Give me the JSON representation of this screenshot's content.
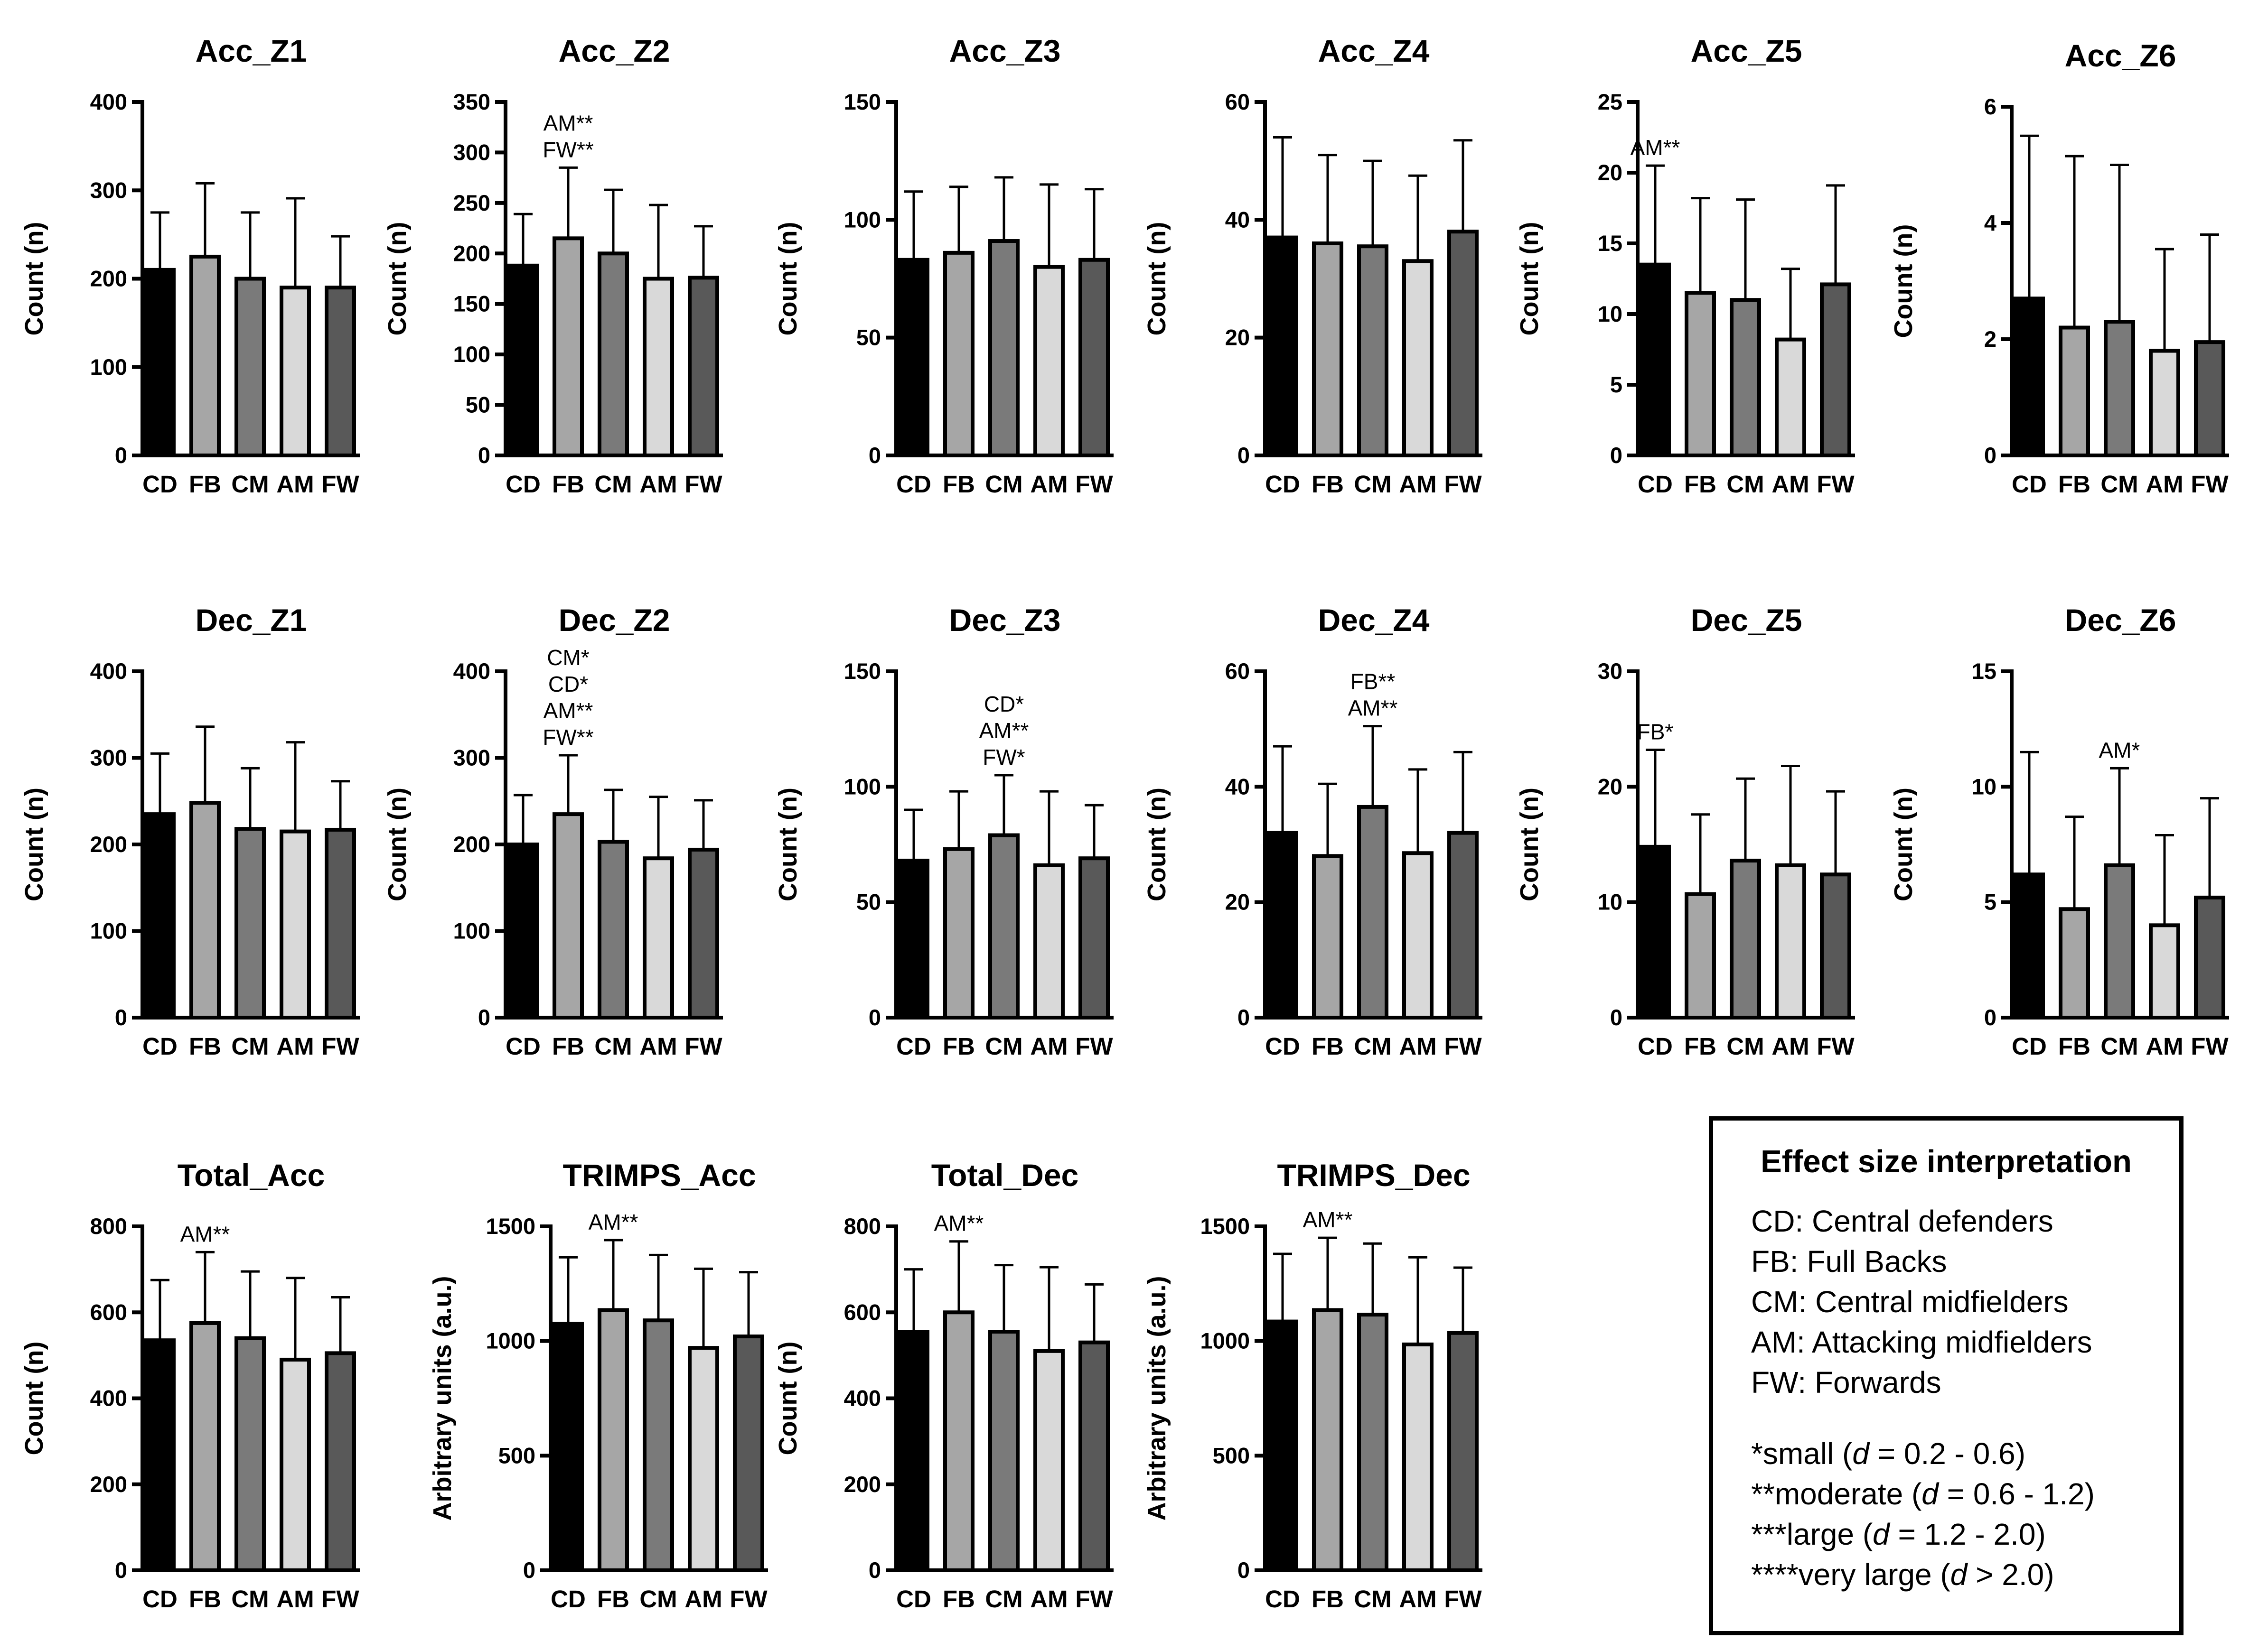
{
  "categories": [
    "CD",
    "FB",
    "CM",
    "AM",
    "FW"
  ],
  "bar_colors": [
    "#000000",
    "#a6a6a6",
    "#7a7a7a",
    "#d9d9d9",
    "#595959"
  ],
  "chart_data": [
    {
      "type": "bar",
      "title": "Acc_Z1",
      "ylabel": "Count (n)",
      "ylim": [
        0,
        400
      ],
      "yticks": [
        0,
        100,
        200,
        300,
        400
      ],
      "values": [
        210,
        225,
        200,
        190,
        190
      ],
      "errors": [
        65,
        83,
        75,
        101,
        58
      ],
      "annotation": []
    },
    {
      "type": "bar",
      "title": "Acc_Z2",
      "ylabel": "Count (n)",
      "ylim": [
        0,
        350
      ],
      "yticks": [
        0,
        50,
        100,
        150,
        200,
        250,
        300,
        350
      ],
      "values": [
        188,
        215,
        200,
        175,
        176
      ],
      "errors": [
        51,
        70,
        63,
        73,
        51
      ],
      "annotation": [
        "AM**",
        "FW**"
      ],
      "annotation_at": "FB"
    },
    {
      "type": "bar",
      "title": "Acc_Z3",
      "ylabel": "Count (n)",
      "ylim": [
        0,
        150
      ],
      "yticks": [
        0,
        50,
        100,
        150
      ],
      "values": [
        83,
        86,
        91,
        80,
        83
      ],
      "errors": [
        29,
        28,
        27,
        35,
        30
      ],
      "annotation": []
    },
    {
      "type": "bar",
      "title": "Acc_Z4",
      "ylabel": "Count (n)",
      "ylim": [
        0,
        60
      ],
      "yticks": [
        0,
        20,
        40,
        60
      ],
      "values": [
        37,
        36,
        35.5,
        33,
        38
      ],
      "errors": [
        17,
        15,
        14.5,
        14.5,
        15.5
      ],
      "annotation": []
    },
    {
      "type": "bar",
      "title": "Acc_Z5",
      "ylabel": "Count (n)",
      "ylim": [
        0,
        25
      ],
      "yticks": [
        0,
        5,
        10,
        15,
        20,
        25
      ],
      "values": [
        13.5,
        11.5,
        11,
        8.2,
        12.1
      ],
      "errors": [
        7,
        6.7,
        7.1,
        5,
        7
      ],
      "annotation": [
        "AM**"
      ],
      "annotation_at": "CD"
    },
    {
      "type": "bar",
      "title": "Acc_Z6",
      "ylabel": "Count (n)",
      "ylim": [
        0,
        6
      ],
      "yticks": [
        0,
        2,
        4,
        6
      ],
      "values": [
        2.7,
        2.2,
        2.3,
        1.8,
        1.95
      ],
      "errors": [
        2.8,
        2.95,
        2.7,
        1.75,
        1.85
      ],
      "annotation": []
    },
    {
      "type": "bar",
      "title": "Dec_Z1",
      "ylabel": "Count (n)",
      "ylim": [
        0,
        400
      ],
      "yticks": [
        0,
        100,
        200,
        300,
        400
      ],
      "values": [
        235,
        248,
        218,
        215,
        217
      ],
      "errors": [
        70,
        88,
        70,
        103,
        56
      ],
      "annotation": []
    },
    {
      "type": "bar",
      "title": "Dec_Z2",
      "ylabel": "Count (n)",
      "ylim": [
        0,
        400
      ],
      "yticks": [
        0,
        100,
        200,
        300,
        400
      ],
      "values": [
        200,
        235,
        203,
        184,
        194
      ],
      "errors": [
        57,
        68,
        60,
        71,
        57
      ],
      "annotation": [
        "CM*",
        "CD*",
        "AM**",
        "FW**"
      ],
      "annotation_at": "FB"
    },
    {
      "type": "bar",
      "title": "Dec_Z3",
      "ylabel": "Count (n)",
      "ylim": [
        0,
        150
      ],
      "yticks": [
        0,
        50,
        100,
        150
      ],
      "values": [
        68,
        73,
        79,
        66,
        69
      ],
      "errors": [
        22,
        25,
        26,
        32,
        23
      ],
      "annotation": [
        "CD*",
        "AM**",
        "FW*"
      ],
      "annotation_at": "CM"
    },
    {
      "type": "bar",
      "title": "Dec_Z4",
      "ylabel": "Count (n)",
      "ylim": [
        0,
        60
      ],
      "yticks": [
        0,
        20,
        40,
        60
      ],
      "values": [
        32,
        28,
        36.5,
        28.5,
        32
      ],
      "errors": [
        15,
        12.5,
        14,
        14.5,
        14
      ],
      "annotation": [
        "FB**",
        "AM**"
      ],
      "annotation_at": "CM"
    },
    {
      "type": "bar",
      "title": "Dec_Z5",
      "ylabel": "Count (n)",
      "ylim": [
        0,
        30
      ],
      "yticks": [
        0,
        10,
        20,
        30
      ],
      "values": [
        14.8,
        10.7,
        13.6,
        13.2,
        12.4
      ],
      "errors": [
        8.4,
        6.9,
        7.1,
        8.6,
        7.2
      ],
      "annotation": [
        "FB*"
      ],
      "annotation_at": "CD"
    },
    {
      "type": "bar",
      "title": "Dec_Z6",
      "ylabel": "Count (n)",
      "ylim": [
        0,
        15
      ],
      "yticks": [
        0,
        5,
        10,
        15
      ],
      "values": [
        6.2,
        4.7,
        6.6,
        4,
        5.2
      ],
      "errors": [
        5.3,
        4,
        4.2,
        3.9,
        4.3
      ],
      "annotation": [
        "AM*"
      ],
      "annotation_at": "CM"
    },
    {
      "type": "bar",
      "title": "Total_Acc",
      "ylabel": "Count (n)",
      "ylim": [
        0,
        800
      ],
      "yticks": [
        0,
        200,
        400,
        600,
        800
      ],
      "values": [
        535,
        575,
        540,
        490,
        505
      ],
      "errors": [
        140,
        165,
        155,
        190,
        130
      ],
      "annotation": [
        "AM**"
      ],
      "annotation_at": "FB"
    },
    {
      "type": "bar",
      "title": "TRIMPS_Acc",
      "ylabel": "Arbitrary units (a.u.)",
      "ylim": [
        0,
        1500
      ],
      "yticks": [
        0,
        500,
        1000,
        1500
      ],
      "values": [
        1075,
        1135,
        1090,
        970,
        1020
      ],
      "errors": [
        290,
        305,
        285,
        345,
        280
      ],
      "annotation": [
        "AM**"
      ],
      "annotation_at": "FB"
    },
    {
      "type": "bar",
      "title": "Total_Dec",
      "ylabel": "Count (n)",
      "ylim": [
        0,
        800
      ],
      "yticks": [
        0,
        200,
        400,
        600,
        800
      ],
      "values": [
        555,
        600,
        555,
        510,
        530
      ],
      "errors": [
        145,
        165,
        155,
        195,
        135
      ],
      "annotation": [
        "AM**"
      ],
      "annotation_at": "FB"
    },
    {
      "type": "bar",
      "title": "TRIMPS_Dec",
      "ylabel": "Arbitrary units (a.u.)",
      "ylim": [
        0,
        1500
      ],
      "yticks": [
        0,
        500,
        1000,
        1500
      ],
      "values": [
        1085,
        1135,
        1115,
        985,
        1035
      ],
      "errors": [
        295,
        315,
        310,
        380,
        285
      ],
      "annotation": [
        "AM**"
      ],
      "annotation_at": "FB"
    }
  ],
  "legend": {
    "title": "Effect size interpretation",
    "definitions": [
      "CD: Central defenders",
      "FB: Full Backs",
      "CM: Central midfielders",
      "AM: Attacking midfielders",
      "FW: Forwards"
    ],
    "effects": [
      {
        "prefix": "*small (",
        "d": "d",
        "suffix": " = 0.2 - 0.6)"
      },
      {
        "prefix": "**moderate (",
        "d": "d",
        "suffix": " = 0.6 - 1.2)"
      },
      {
        "prefix": "***large (",
        "d": "d",
        "suffix": " = 1.2 - 2.0)"
      },
      {
        "prefix": "****very large (",
        "d": "d",
        "suffix": " > 2.0)"
      }
    ]
  }
}
